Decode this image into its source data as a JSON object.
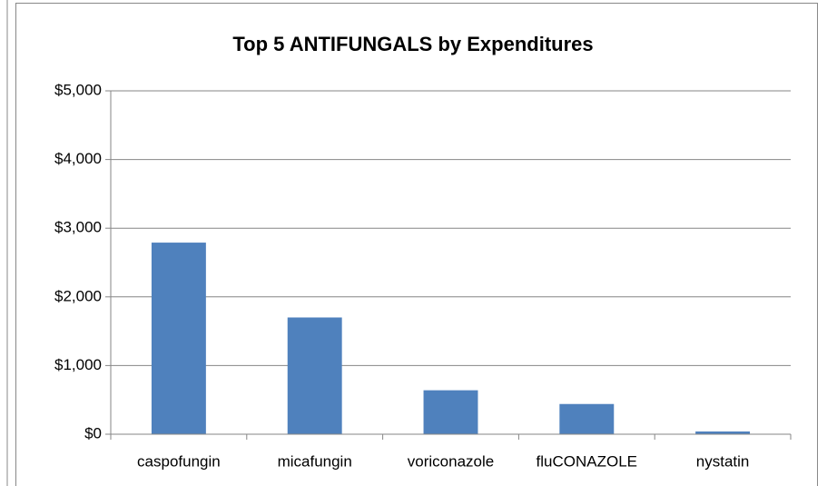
{
  "chart_data": {
    "type": "bar",
    "title": "Top 5 ANTIFUNGALS by Expenditures",
    "categories": [
      "caspofungin",
      "micafungin",
      "voriconazole",
      "fluCONAZOLE",
      "nystatin"
    ],
    "values": [
      2790,
      1700,
      640,
      440,
      40
    ],
    "color": "#4f81bd",
    "ylim": [
      0,
      5000
    ],
    "yticks": [
      {
        "value": 0,
        "label": "$0"
      },
      {
        "value": 1000,
        "label": "$1,000"
      },
      {
        "value": 2000,
        "label": "$2,000"
      },
      {
        "value": 3000,
        "label": "$3,000"
      },
      {
        "value": 4000,
        "label": "$4,000"
      },
      {
        "value": 5000,
        "label": "$5,000"
      }
    ],
    "grid": true
  }
}
